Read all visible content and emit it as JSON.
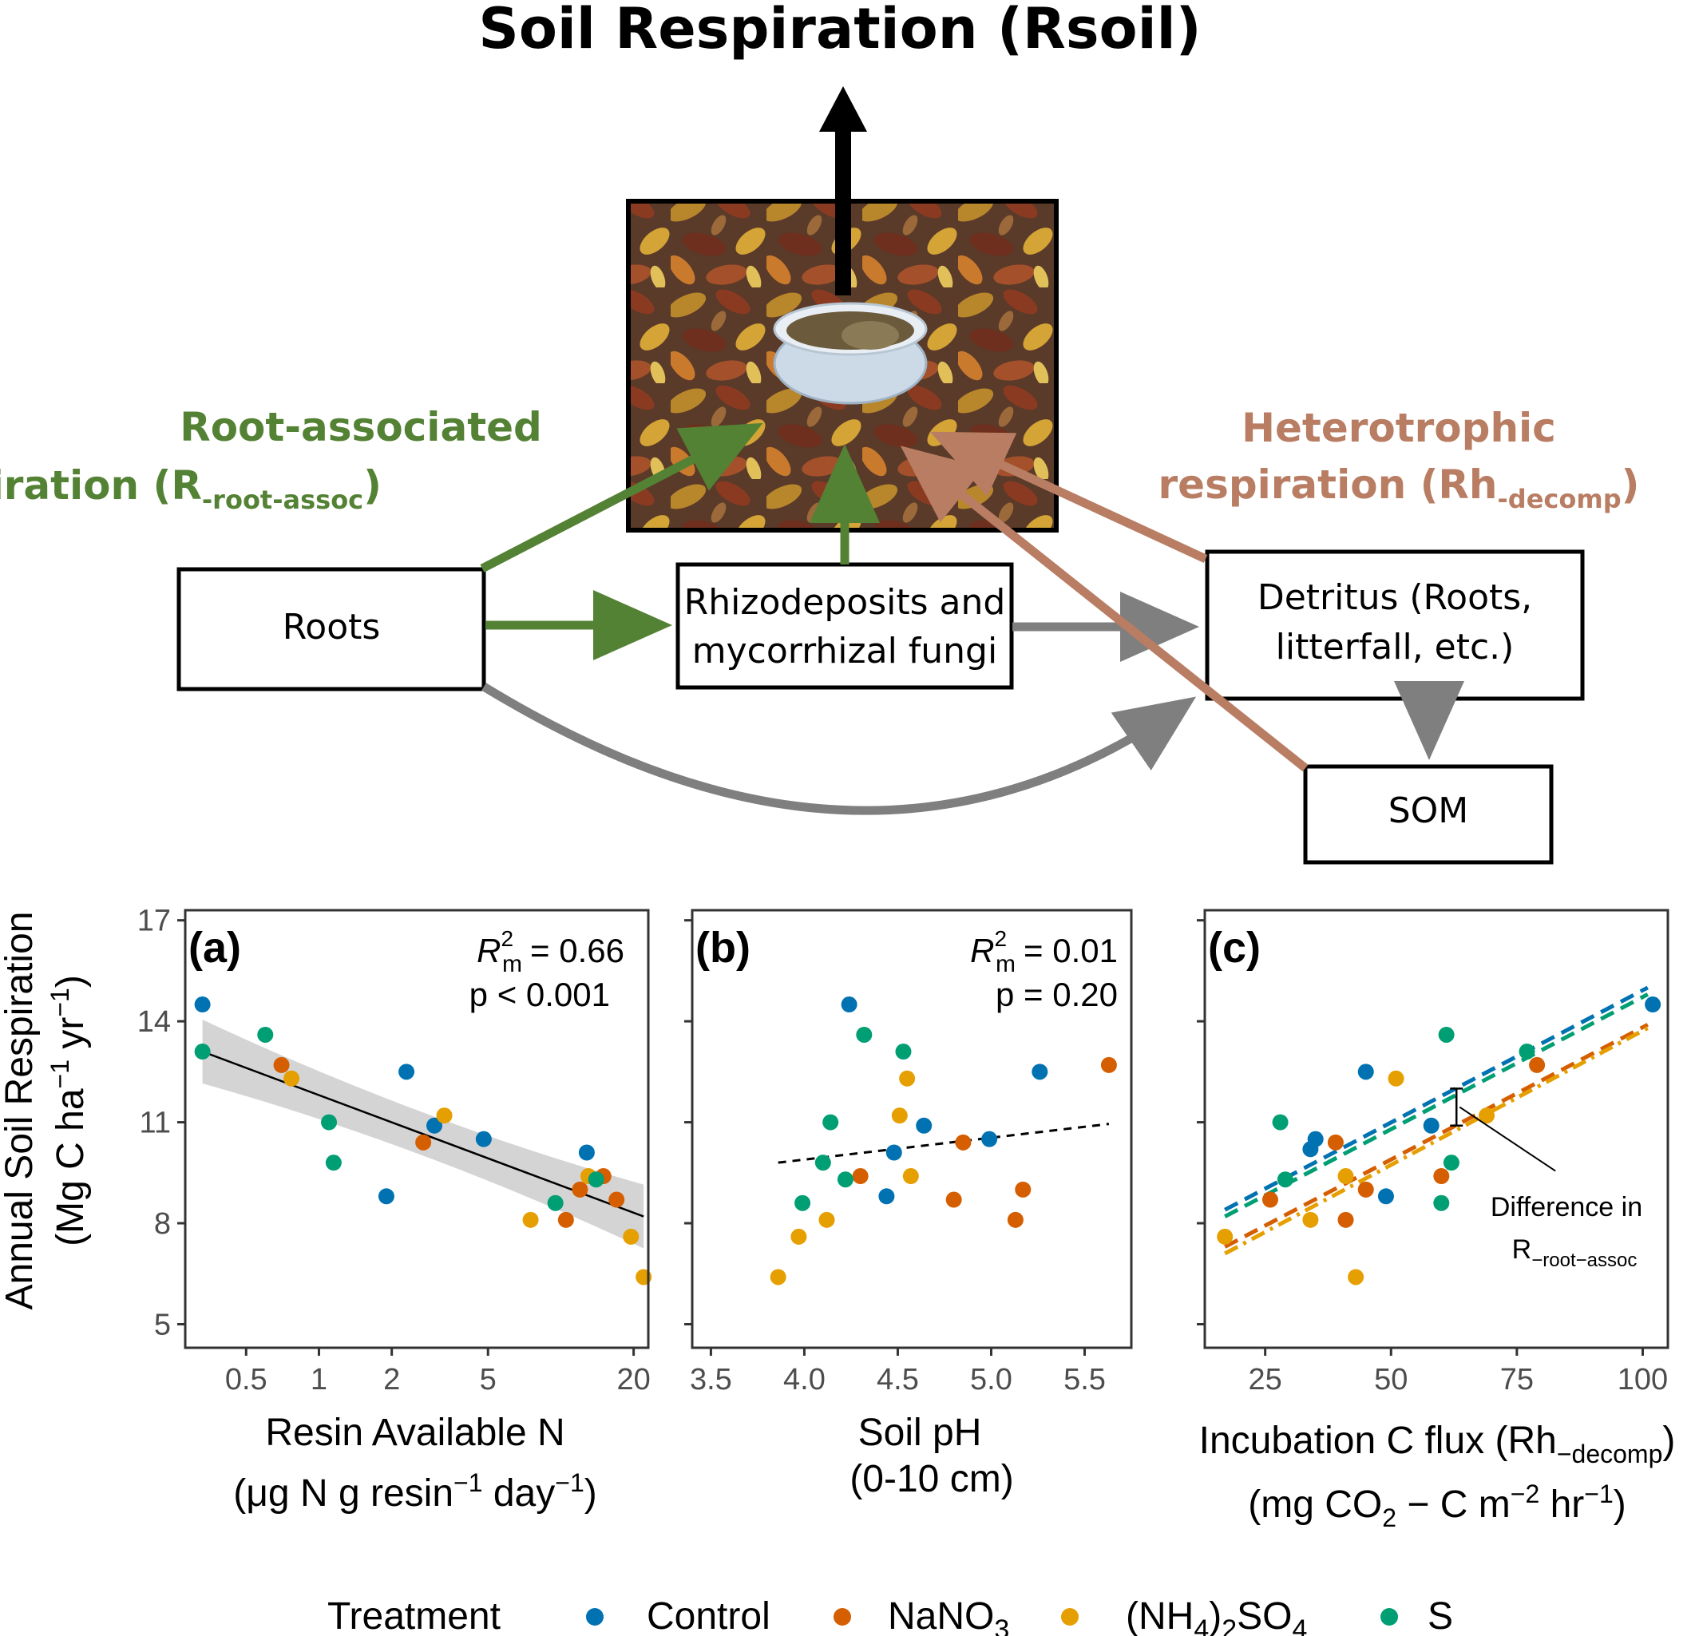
{
  "diagram": {
    "title": "Soil Respiration (Rsoil)",
    "root_label_line1": "Root-associated",
    "root_label_line2_main": "respiration (R",
    "root_label_line2_sub": "-root-assoc",
    "root_label_line2_end": ")",
    "hetero_label_line1": "Heterotrophic",
    "hetero_label_line2_main": "respiration (Rh",
    "hetero_label_line2_sub": "-decomp",
    "hetero_label_line2_end": ")",
    "box_roots": "Roots",
    "box_rhizo_line1": "Rhizodeposits and",
    "box_rhizo_line2": "mycorrhizal fungi",
    "box_detritus_line1": "Detritus (Roots,",
    "box_detritus_line2": "litterfall, etc.)",
    "box_som": "SOM",
    "colors": {
      "green": "#548235",
      "brown": "#b87d63",
      "gray": "#7f7f7f"
    }
  },
  "shared": {
    "ylabel_line1": "Annual Soil Respiration",
    "ylabel_line2_parts": [
      "(Mg C ha",
      "−1",
      " yr",
      "−1",
      ")"
    ],
    "yticks": [
      5,
      8,
      11,
      14,
      17
    ],
    "ylim": [
      4.3,
      17.3
    ]
  },
  "legend": {
    "title": "Treatment",
    "items": [
      {
        "label_main": "Control",
        "label_sub": "",
        "label_after": "",
        "label_pre": "",
        "color": "#0072b2"
      },
      {
        "label_main": "NaNO",
        "label_sub": "3",
        "label_after": "",
        "label_pre": "",
        "color": "#d55e00"
      },
      {
        "label_main": "(NH",
        "label_sub": "4",
        "label_after": ")",
        "label_sub2": "2",
        "label_end": "SO",
        "label_sub3": "4",
        "color": "#e69f00"
      },
      {
        "label_main": "S",
        "label_sub": "",
        "label_after": "",
        "label_pre": "",
        "color": "#009e73"
      }
    ]
  },
  "chart_data": [
    {
      "type": "scatter",
      "panel": "(a)",
      "xscale": "log",
      "xlim": [
        0.28,
        23
      ],
      "xticks": [
        0.5,
        1,
        2,
        5,
        20
      ],
      "xtick_labels": [
        "0.5",
        "1",
        "2",
        "5",
        "20"
      ],
      "xlabel": "Resin Available N",
      "xlabel2_parts": [
        "(μg N g resin",
        "−1",
        " day",
        "−1",
        ")"
      ],
      "stat_r2": "= 0.66",
      "stat_p": "p < 0.001",
      "points": [
        {
          "x": 0.33,
          "y": 14.5,
          "group": "Control"
        },
        {
          "x": 2.3,
          "y": 12.5,
          "group": "Control"
        },
        {
          "x": 3.0,
          "y": 10.9,
          "group": "Control"
        },
        {
          "x": 4.8,
          "y": 10.5,
          "group": "Control"
        },
        {
          "x": 1.9,
          "y": 8.8,
          "group": "Control"
        },
        {
          "x": 12.8,
          "y": 10.1,
          "group": "Control"
        },
        {
          "x": 0.7,
          "y": 12.7,
          "group": "NaNO3"
        },
        {
          "x": 2.7,
          "y": 10.4,
          "group": "NaNO3"
        },
        {
          "x": 10.5,
          "y": 8.1,
          "group": "NaNO3"
        },
        {
          "x": 12.0,
          "y": 9.0,
          "group": "NaNO3"
        },
        {
          "x": 15.0,
          "y": 9.4,
          "group": "NaNO3"
        },
        {
          "x": 17.0,
          "y": 8.7,
          "group": "NaNO3"
        },
        {
          "x": 0.77,
          "y": 12.3,
          "group": "(NH4)2SO4"
        },
        {
          "x": 3.3,
          "y": 11.2,
          "group": "(NH4)2SO4"
        },
        {
          "x": 7.5,
          "y": 8.1,
          "group": "(NH4)2SO4"
        },
        {
          "x": 13.0,
          "y": 9.4,
          "group": "(NH4)2SO4"
        },
        {
          "x": 19.5,
          "y": 7.6,
          "group": "(NH4)2SO4"
        },
        {
          "x": 22.0,
          "y": 6.4,
          "group": "(NH4)2SO4"
        },
        {
          "x": 0.33,
          "y": 13.1,
          "group": "S"
        },
        {
          "x": 0.6,
          "y": 13.6,
          "group": "S"
        },
        {
          "x": 1.1,
          "y": 11.0,
          "group": "S"
        },
        {
          "x": 1.15,
          "y": 9.8,
          "group": "S"
        },
        {
          "x": 9.5,
          "y": 8.6,
          "group": "S"
        },
        {
          "x": 14.0,
          "y": 9.3,
          "group": "S"
        }
      ],
      "fit": {
        "x": [
          0.33,
          22.0
        ],
        "y": [
          13.1,
          8.2
        ],
        "style": "solid",
        "ci": true
      }
    },
    {
      "type": "scatter",
      "panel": "(b)",
      "xscale": "linear",
      "xlim": [
        3.4,
        5.75
      ],
      "xticks": [
        3.5,
        4.0,
        4.5,
        5.0,
        5.5
      ],
      "xtick_labels": [
        "3.5",
        "4.0",
        "4.5",
        "5.0",
        "5.5"
      ],
      "xlabel": "Soil pH",
      "xlabel2_parts": [
        "(0-10 cm)"
      ],
      "stat_r2": "= 0.01",
      "stat_p": "p = 0.20",
      "points": [
        {
          "x": 4.24,
          "y": 14.5,
          "group": "Control"
        },
        {
          "x": 4.44,
          "y": 8.8,
          "group": "Control"
        },
        {
          "x": 4.48,
          "y": 10.1,
          "group": "Control"
        },
        {
          "x": 4.64,
          "y": 10.9,
          "group": "Control"
        },
        {
          "x": 4.99,
          "y": 10.5,
          "group": "Control"
        },
        {
          "x": 5.26,
          "y": 12.5,
          "group": "Control"
        },
        {
          "x": 4.3,
          "y": 9.4,
          "group": "NaNO3"
        },
        {
          "x": 4.8,
          "y": 8.7,
          "group": "NaNO3"
        },
        {
          "x": 4.85,
          "y": 10.4,
          "group": "NaNO3"
        },
        {
          "x": 5.13,
          "y": 8.1,
          "group": "NaNO3"
        },
        {
          "x": 5.17,
          "y": 9.0,
          "group": "NaNO3"
        },
        {
          "x": 5.63,
          "y": 12.7,
          "group": "NaNO3"
        },
        {
          "x": 3.86,
          "y": 6.4,
          "group": "(NH4)2SO4"
        },
        {
          "x": 3.97,
          "y": 7.6,
          "group": "(NH4)2SO4"
        },
        {
          "x": 4.12,
          "y": 8.1,
          "group": "(NH4)2SO4"
        },
        {
          "x": 4.51,
          "y": 11.2,
          "group": "(NH4)2SO4"
        },
        {
          "x": 4.55,
          "y": 12.3,
          "group": "(NH4)2SO4"
        },
        {
          "x": 4.57,
          "y": 9.4,
          "group": "(NH4)2SO4"
        },
        {
          "x": 3.99,
          "y": 8.6,
          "group": "S"
        },
        {
          "x": 4.1,
          "y": 9.8,
          "group": "S"
        },
        {
          "x": 4.14,
          "y": 11.0,
          "group": "S"
        },
        {
          "x": 4.22,
          "y": 9.3,
          "group": "S"
        },
        {
          "x": 4.32,
          "y": 13.6,
          "group": "S"
        },
        {
          "x": 4.53,
          "y": 13.1,
          "group": "S"
        }
      ],
      "fit": {
        "x": [
          3.86,
          5.63
        ],
        "y": [
          9.8,
          10.95
        ],
        "style": "dashed",
        "ci": false
      }
    },
    {
      "type": "scatter",
      "panel": "(c)",
      "xscale": "linear",
      "xlim": [
        13,
        105
      ],
      "xticks": [
        25,
        50,
        75,
        100
      ],
      "xtick_labels": [
        "25",
        "50",
        "75",
        "100"
      ],
      "xlabel_parts": [
        "Incubation C flux (Rh",
        "−decomp",
        ")"
      ],
      "xlabel2_parts": [
        "(mg CO",
        "2",
        " − C m",
        "−2",
        " hr",
        "−1",
        ")"
      ],
      "annotation_line1": "Difference in",
      "annotation_line2_main": "R",
      "annotation_line2_sub": "−root−assoc",
      "points": [
        {
          "x": 102,
          "y": 14.5,
          "group": "Control"
        },
        {
          "x": 45,
          "y": 12.5,
          "group": "Control"
        },
        {
          "x": 35,
          "y": 10.5,
          "group": "Control"
        },
        {
          "x": 34,
          "y": 10.2,
          "group": "Control"
        },
        {
          "x": 58,
          "y": 10.9,
          "group": "Control"
        },
        {
          "x": 49,
          "y": 8.8,
          "group": "Control"
        },
        {
          "x": 79,
          "y": 12.7,
          "group": "NaNO3"
        },
        {
          "x": 39,
          "y": 10.4,
          "group": "NaNO3"
        },
        {
          "x": 45,
          "y": 9.0,
          "group": "NaNO3"
        },
        {
          "x": 41,
          "y": 8.1,
          "group": "NaNO3"
        },
        {
          "x": 60,
          "y": 9.4,
          "group": "NaNO3"
        },
        {
          "x": 26,
          "y": 8.7,
          "group": "NaNO3"
        },
        {
          "x": 51,
          "y": 12.3,
          "group": "(NH4)2SO4"
        },
        {
          "x": 69,
          "y": 11.2,
          "group": "(NH4)2SO4"
        },
        {
          "x": 43,
          "y": 6.4,
          "group": "(NH4)2SO4"
        },
        {
          "x": 34,
          "y": 8.1,
          "group": "(NH4)2SO4"
        },
        {
          "x": 41,
          "y": 9.4,
          "group": "(NH4)2SO4"
        },
        {
          "x": 17,
          "y": 7.6,
          "group": "(NH4)2SO4"
        },
        {
          "x": 61,
          "y": 13.6,
          "group": "S"
        },
        {
          "x": 77,
          "y": 13.1,
          "group": "S"
        },
        {
          "x": 28,
          "y": 11.0,
          "group": "S"
        },
        {
          "x": 29,
          "y": 9.3,
          "group": "S"
        },
        {
          "x": 62,
          "y": 9.8,
          "group": "S"
        },
        {
          "x": 60,
          "y": 8.6,
          "group": "S"
        }
      ],
      "fits": [
        {
          "group": "Control",
          "x": [
            17,
            101
          ],
          "y": [
            8.4,
            15.0
          ]
        },
        {
          "group": "S",
          "x": [
            17,
            101
          ],
          "y": [
            8.2,
            14.8
          ]
        },
        {
          "group": "NaNO3",
          "x": [
            17,
            101
          ],
          "y": [
            7.3,
            13.9
          ]
        },
        {
          "group": "(NH4)2SO4",
          "x": [
            17,
            101
          ],
          "y": [
            7.1,
            13.8
          ]
        }
      ],
      "errorbar": {
        "x": 63,
        "y_low": 10.9,
        "y_high": 12.0
      }
    }
  ]
}
